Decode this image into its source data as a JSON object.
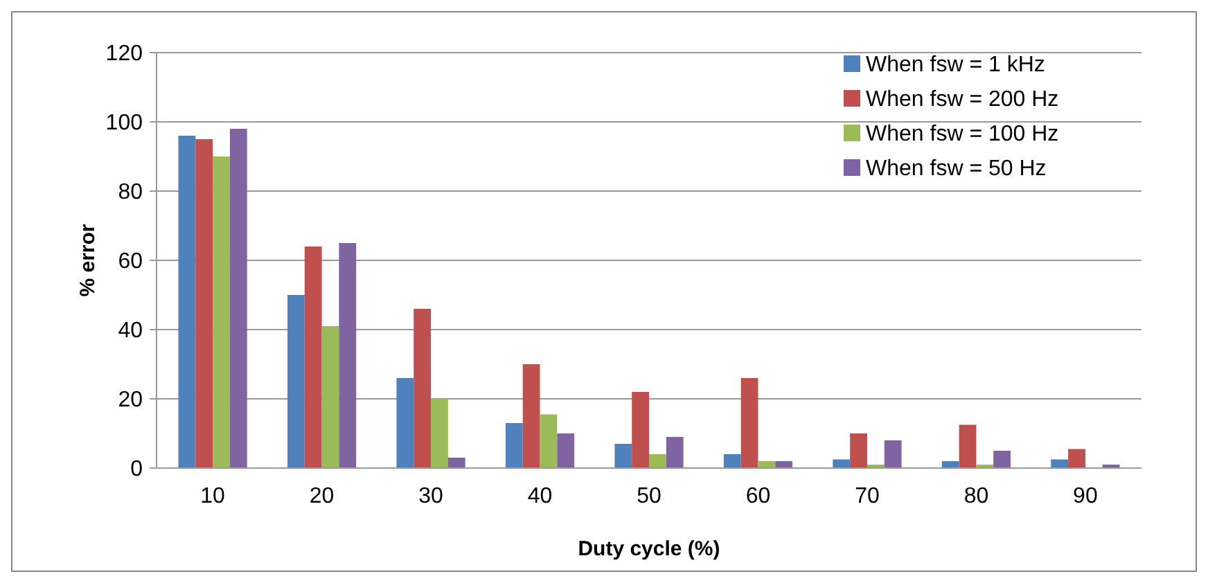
{
  "chart_data": {
    "type": "bar",
    "xlabel": "Duty cycle (%)",
    "ylabel": "% error",
    "categories": [
      "10",
      "20",
      "30",
      "40",
      "50",
      "60",
      "70",
      "80",
      "90"
    ],
    "series": [
      {
        "name": "When fsw = 1 kHz",
        "color": "#4f81bd",
        "values": [
          96,
          50,
          26,
          13,
          7,
          4,
          2.5,
          2,
          2.5
        ]
      },
      {
        "name": "When fsw = 200 Hz",
        "color": "#c0504d",
        "values": [
          95,
          64,
          46,
          30,
          22,
          26,
          10,
          12.5,
          5.5
        ]
      },
      {
        "name": "When fsw = 100 Hz",
        "color": "#9bbb59",
        "values": [
          90,
          41,
          20,
          15.5,
          4,
          2,
          1,
          1,
          0
        ]
      },
      {
        "name": "When fsw = 50 Hz",
        "color": "#8064a2",
        "values": [
          98,
          65,
          3,
          10,
          9,
          2,
          8,
          5,
          1
        ]
      }
    ],
    "ylim": [
      0,
      120
    ],
    "yticks": [
      0,
      20,
      40,
      60,
      80,
      100,
      120
    ],
    "grid": "y",
    "legend": "top right"
  }
}
